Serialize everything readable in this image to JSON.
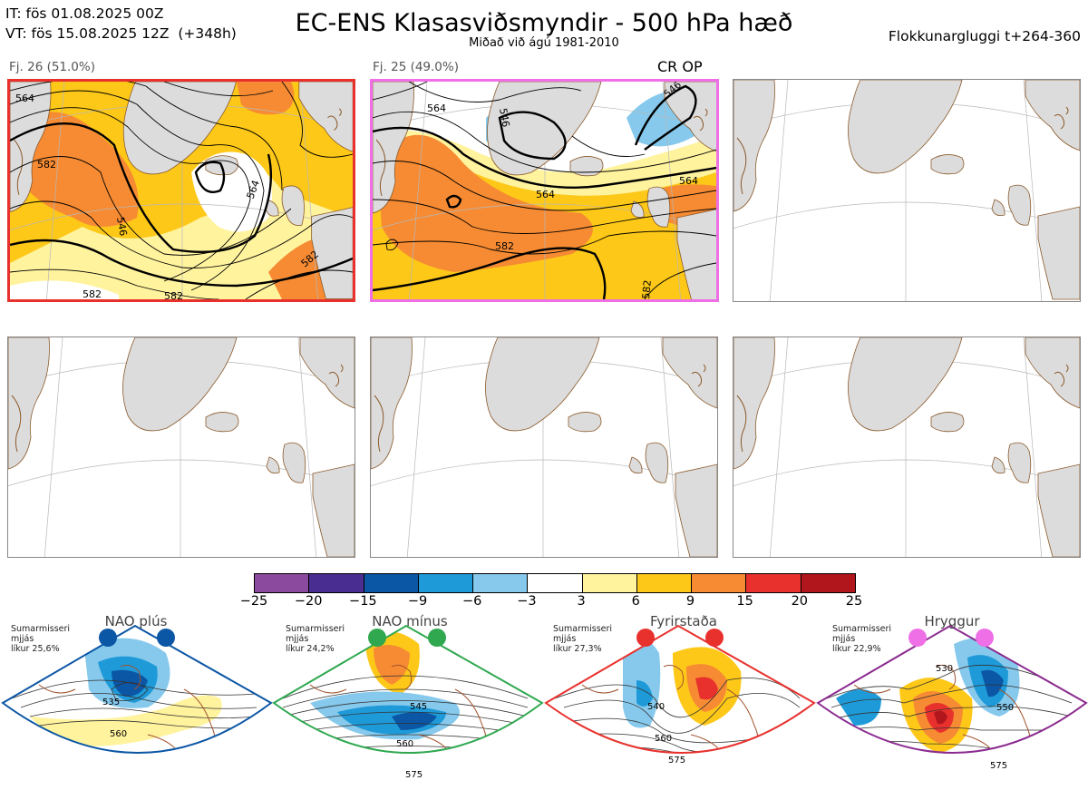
{
  "header": {
    "it_line": "IT: fös 01.08.2025 00Z",
    "vt_line": "VT: fös 15.08.2025 12Z  (+348h)",
    "title": "EC-ENS Klasasviðsmyndir - 500 hPa hæð",
    "subtitle": "Miðað við ágú 1981-2010",
    "window": "Flokkunargluggi t+264-360"
  },
  "panels": [
    {
      "label": "Fj. 26 (51.0%)",
      "frame_color": "#e8312d",
      "contours": [
        "564",
        "582",
        "546",
        "564",
        "582",
        "582",
        "582"
      ]
    },
    {
      "label": "Fj. 25 (49.0%)",
      "frame_color": "#ee6fe6",
      "tag": "CR OP",
      "contours": [
        "564",
        "546",
        "564",
        "582",
        "564",
        "582",
        "546"
      ]
    },
    {
      "label": ""
    },
    {
      "label": ""
    },
    {
      "label": ""
    },
    {
      "label": ""
    }
  ],
  "colorbar": {
    "ticks": [
      "−25",
      "−20",
      "−15",
      "−9",
      "−6",
      "−3",
      "3",
      "6",
      "9",
      "15",
      "20",
      "25"
    ],
    "colors": [
      "#8c4a9e",
      "#4a2d91",
      "#0b56a5",
      "#1f9ad8",
      "#86c9ec",
      "#ffffff",
      "#fff39e",
      "#fdc818",
      "#f68b33",
      "#e8312d",
      "#b0161c"
    ]
  },
  "regimes": [
    {
      "name": "NAO plús",
      "season": "Sumarmisseri",
      "type": "mjjás",
      "prob": "líkur 25,6%",
      "frame_color": "#0b56a5",
      "dot_color": "#0b56a5",
      "contours": [
        "535",
        "560"
      ]
    },
    {
      "name": "NAO mínus",
      "season": "Sumarmisseri",
      "type": "mjjás",
      "prob": "líkur 24,2%",
      "frame_color": "#2fa84f",
      "dot_color": "#2fa84f",
      "contours": [
        "545",
        "560",
        "575"
      ]
    },
    {
      "name": "Fyrirstaða",
      "season": "Sumarmisseri",
      "type": "mjjás",
      "prob": "líkur 27,3%",
      "frame_color": "#e8312d",
      "dot_color": "#e8312d",
      "contours": [
        "540",
        "560",
        "575"
      ]
    },
    {
      "name": "Hryggur",
      "season": "Sumarmisseri",
      "type": "mjjás",
      "prob": "líkur 22,9%",
      "frame_color": "#8b2a8f",
      "dot_color": "#ee6fe6",
      "contours": [
        "530",
        "550",
        "575"
      ]
    }
  ]
}
